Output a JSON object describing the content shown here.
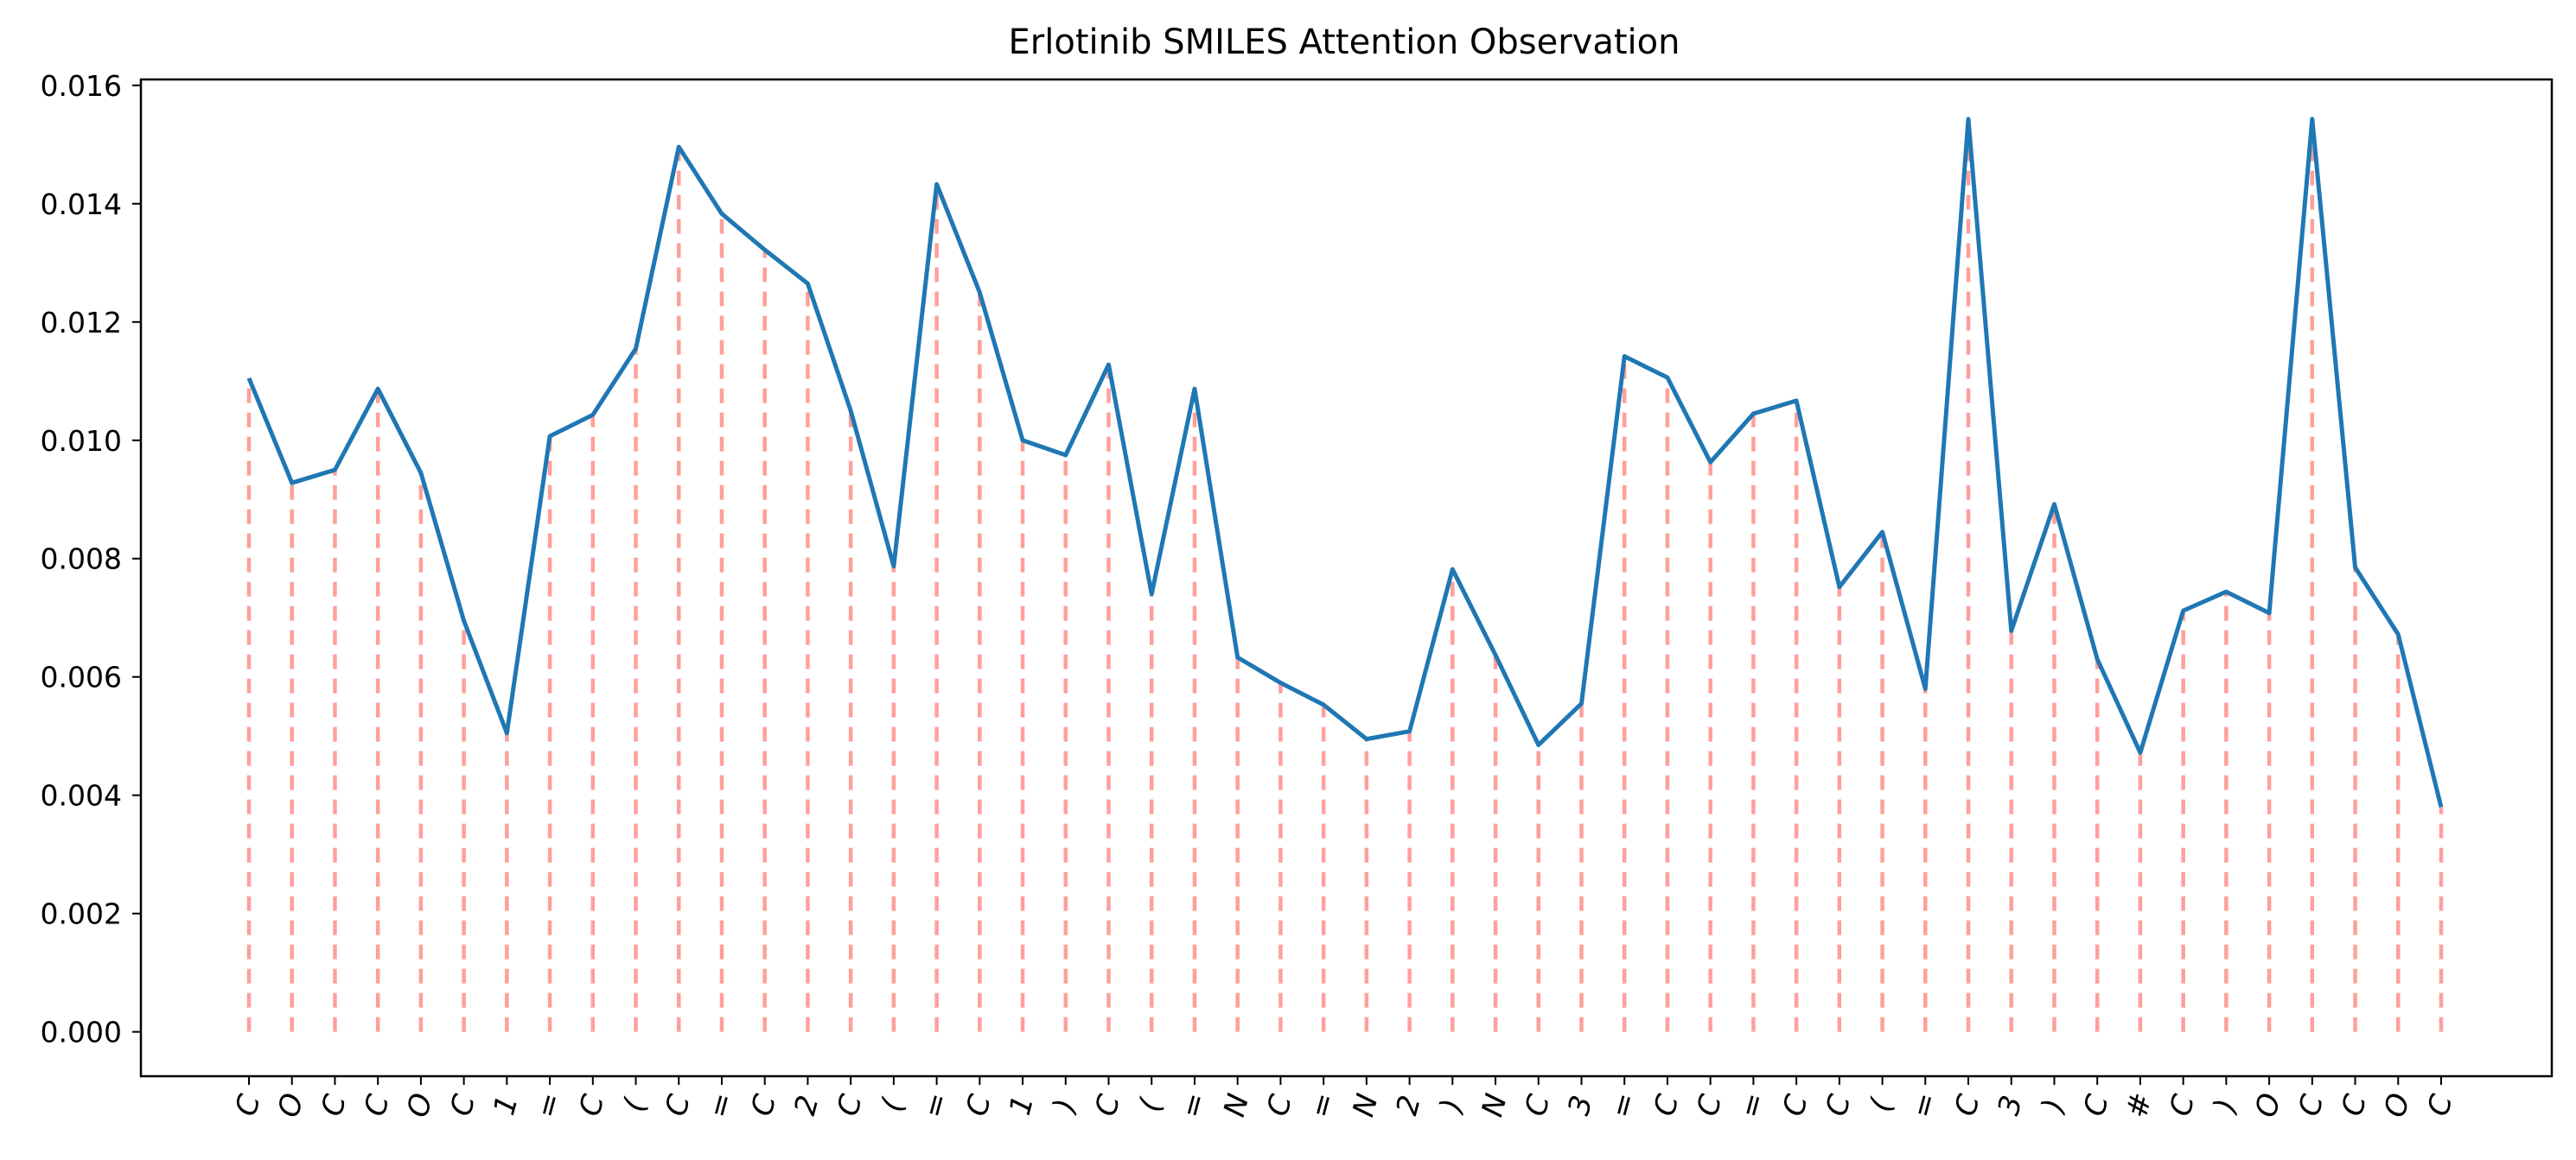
{
  "chart_data": {
    "type": "line",
    "title": "Erlotinib SMILES Attention Observation",
    "xlabel": "",
    "ylabel": "",
    "categories": [
      "C",
      "O",
      "C",
      "C",
      "O",
      "C",
      "1",
      "=",
      "C",
      "(",
      "C",
      "=",
      "C",
      "2",
      "C",
      "(",
      "=",
      "C",
      "1",
      ")",
      "C",
      "(",
      "=",
      "N",
      "C",
      "=",
      "N",
      "2",
      ")",
      "N",
      "C",
      "3",
      "=",
      "C",
      "C",
      "=",
      "C",
      "C",
      "(",
      "=",
      "C",
      "3",
      ")",
      "C",
      "#",
      "C",
      ")",
      "O",
      "C",
      "C",
      "O",
      "C"
    ],
    "series": [
      {
        "values": [
          0.01105,
          0.00928,
          0.0095,
          0.01087,
          0.00945,
          0.00695,
          0.00505,
          0.01007,
          0.01043,
          0.01155,
          0.01496,
          0.01383,
          0.01322,
          0.01265,
          0.0105,
          0.00787,
          0.01433,
          0.0125,
          0.01,
          0.00975,
          0.01128,
          0.0074,
          0.01087,
          0.00633,
          0.0059,
          0.00553,
          0.00495,
          0.00508,
          0.00782,
          0.00637,
          0.00485,
          0.00555,
          0.01142,
          0.01106,
          0.00963,
          0.01045,
          0.01067,
          0.00752,
          0.00845,
          0.0058,
          0.01543,
          0.00678,
          0.00892,
          0.0063,
          0.00472,
          0.00712,
          0.00744,
          0.00708,
          0.01543,
          0.00785,
          0.00672,
          0.0038
        ],
        "color": "#1f77b4"
      }
    ],
    "ylim": [
      -0.00075,
      0.0161
    ],
    "yticks": [
      "0.000",
      "0.002",
      "0.004",
      "0.006",
      "0.008",
      "0.010",
      "0.012",
      "0.014",
      "0.016"
    ],
    "stem_style": "dashed vertical lines from 0 to each value",
    "stem_color": "#ff9f9b",
    "grid": false,
    "legend": "none"
  }
}
